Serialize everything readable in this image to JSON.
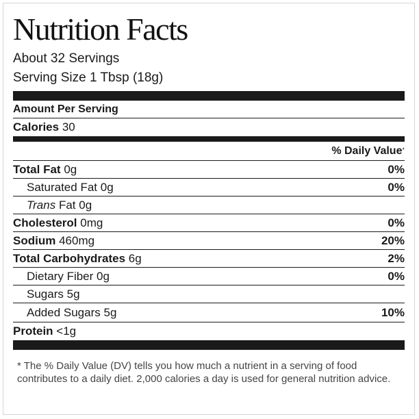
{
  "label": {
    "title": "Nutrition Facts",
    "servings": "About 32 Servings",
    "serving_size": "Serving Size 1 Tbsp (18g)",
    "amount_per_serving": "Amount Per Serving",
    "calories_label": "Calories",
    "calories_value": "30",
    "daily_value_header": "% Daily Value",
    "daily_value_mark": "*",
    "nutrients": [
      {
        "name": "Total Fat",
        "amount": "0g",
        "dv": "0%"
      },
      {
        "name": "Saturated Fat",
        "amount": "0g",
        "dv": "0%"
      },
      {
        "name_italic": "Trans",
        "name_rest": "Fat",
        "amount": "0g",
        "dv": ""
      },
      {
        "name": "Cholesterol",
        "amount": "0mg",
        "dv": "0%"
      },
      {
        "name": "Sodium",
        "amount": "460mg",
        "dv": "20%"
      },
      {
        "name": "Total Carbohydrates",
        "amount": "6g",
        "dv": "2%"
      },
      {
        "name": "Dietary Fiber",
        "amount": "0g",
        "dv": "0%"
      },
      {
        "name": "Sugars",
        "amount": "5g",
        "dv": ""
      },
      {
        "name": "Added Sugars",
        "amount": "5g",
        "dv": "10%"
      },
      {
        "name": "Protein",
        "amount": "<1g",
        "dv": ""
      }
    ],
    "footnote": "* The % Daily Value (DV) tells you how much a nutrient in a serving of food contributes to a daily diet. 2,000 calories a day is used for general nutrition advice."
  }
}
